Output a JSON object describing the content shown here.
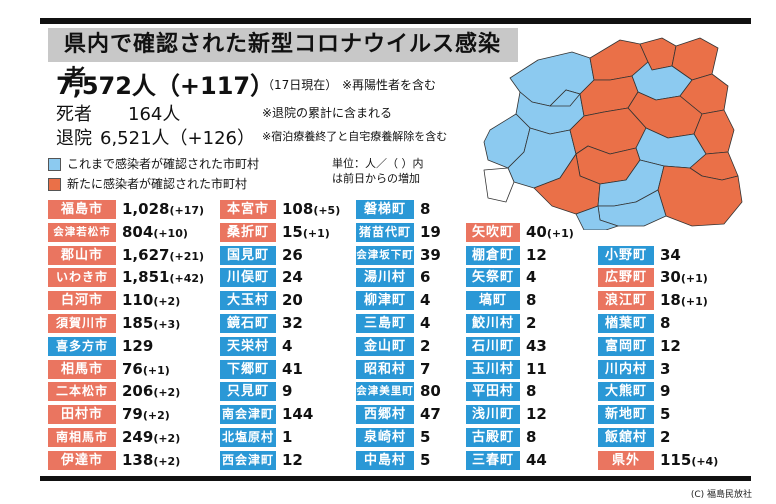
{
  "title": "県内で確認された新型コロナウイルス感染者",
  "stats": {
    "total": "7,572人（+117）",
    "total_date": "（17日現在）",
    "total_note": "※再陽性者を含む",
    "deaths_label": "死者",
    "deaths": "164人",
    "deaths_note": "※退院の累計に含まれる",
    "recovered_label": "退院",
    "recovered": "6,521人（+126）",
    "recovered_note": "※宿泊療養終了と自宅療養解除を含む"
  },
  "legend": {
    "existing": "これまで感染者が確認された市町村",
    "new": "新たに感染者が確認された市町村",
    "unit_line1": "単位：人／（ ）内",
    "unit_line2": "は前日からの増加"
  },
  "colors": {
    "blue": "#2a98d6",
    "red": "#ea7560",
    "map_blue": "#8ccaf0",
    "map_red": "#ea7048",
    "map_white": "#ffffff"
  },
  "columns": [
    [
      {
        "name": "福島市",
        "value": "1,028",
        "inc": "(+17)",
        "status": "new"
      },
      {
        "name": "会津若松市",
        "value": "804",
        "inc": "(+10)",
        "status": "new"
      },
      {
        "name": "郡山市",
        "value": "1,627",
        "inc": "(+21)",
        "status": "new"
      },
      {
        "name": "いわき市",
        "value": "1,851",
        "inc": "(+42)",
        "status": "new"
      },
      {
        "name": "白河市",
        "value": "110",
        "inc": "(+2)",
        "status": "new"
      },
      {
        "name": "須賀川市",
        "value": "185",
        "inc": "(+3)",
        "status": "new"
      },
      {
        "name": "喜多方市",
        "value": "129",
        "inc": "",
        "status": "existing"
      },
      {
        "name": "相馬市",
        "value": "76",
        "inc": "(+1)",
        "status": "new"
      },
      {
        "name": "二本松市",
        "value": "206",
        "inc": "(+2)",
        "status": "new"
      },
      {
        "name": "田村市",
        "value": "79",
        "inc": "(+2)",
        "status": "new"
      },
      {
        "name": "南相馬市",
        "value": "249",
        "inc": "(+2)",
        "status": "new"
      },
      {
        "name": "伊達市",
        "value": "138",
        "inc": "(+2)",
        "status": "new"
      }
    ],
    [
      {
        "name": "本宮市",
        "value": "108",
        "inc": "(+5)",
        "status": "new"
      },
      {
        "name": "桑折町",
        "value": "15",
        "inc": "(+1)",
        "status": "new"
      },
      {
        "name": "国見町",
        "value": "26",
        "inc": "",
        "status": "existing"
      },
      {
        "name": "川俣町",
        "value": "24",
        "inc": "",
        "status": "existing"
      },
      {
        "name": "大玉村",
        "value": "20",
        "inc": "",
        "status": "existing"
      },
      {
        "name": "鏡石町",
        "value": "32",
        "inc": "",
        "status": "existing"
      },
      {
        "name": "天栄村",
        "value": "4",
        "inc": "",
        "status": "existing"
      },
      {
        "name": "下郷町",
        "value": "41",
        "inc": "",
        "status": "existing"
      },
      {
        "name": "只見町",
        "value": "9",
        "inc": "",
        "status": "existing"
      },
      {
        "name": "南会津町",
        "value": "144",
        "inc": "",
        "status": "existing"
      },
      {
        "name": "北塩原村",
        "value": "1",
        "inc": "",
        "status": "existing"
      },
      {
        "name": "西会津町",
        "value": "12",
        "inc": "",
        "status": "existing"
      }
    ],
    [
      {
        "name": "磐梯町",
        "value": "8",
        "inc": "",
        "status": "existing"
      },
      {
        "name": "猪苗代町",
        "value": "19",
        "inc": "",
        "status": "existing"
      },
      {
        "name": "会津坂下町",
        "value": "39",
        "inc": "",
        "status": "existing"
      },
      {
        "name": "湯川村",
        "value": "6",
        "inc": "",
        "status": "existing"
      },
      {
        "name": "柳津町",
        "value": "4",
        "inc": "",
        "status": "existing"
      },
      {
        "name": "三島町",
        "value": "4",
        "inc": "",
        "status": "existing"
      },
      {
        "name": "金山町",
        "value": "2",
        "inc": "",
        "status": "existing"
      },
      {
        "name": "昭和村",
        "value": "7",
        "inc": "",
        "status": "existing"
      },
      {
        "name": "会津美里町",
        "value": "80",
        "inc": "",
        "status": "existing"
      },
      {
        "name": "西郷村",
        "value": "47",
        "inc": "",
        "status": "existing"
      },
      {
        "name": "泉崎村",
        "value": "5",
        "inc": "",
        "status": "existing"
      },
      {
        "name": "中島村",
        "value": "5",
        "inc": "",
        "status": "existing"
      }
    ],
    [
      {
        "name": "矢吹町",
        "value": "40",
        "inc": "(+1)",
        "status": "new"
      },
      {
        "name": "棚倉町",
        "value": "12",
        "inc": "",
        "status": "existing"
      },
      {
        "name": "矢祭町",
        "value": "4",
        "inc": "",
        "status": "existing"
      },
      {
        "name": "塙町",
        "value": "8",
        "inc": "",
        "status": "existing"
      },
      {
        "name": "鮫川村",
        "value": "2",
        "inc": "",
        "status": "existing"
      },
      {
        "name": "石川町",
        "value": "43",
        "inc": "",
        "status": "existing"
      },
      {
        "name": "玉川村",
        "value": "11",
        "inc": "",
        "status": "existing"
      },
      {
        "name": "平田村",
        "value": "8",
        "inc": "",
        "status": "existing"
      },
      {
        "name": "浅川町",
        "value": "12",
        "inc": "",
        "status": "existing"
      },
      {
        "name": "古殿町",
        "value": "8",
        "inc": "",
        "status": "existing"
      },
      {
        "name": "三春町",
        "value": "44",
        "inc": "",
        "status": "existing"
      }
    ],
    [
      {
        "name": "小野町",
        "value": "34",
        "inc": "",
        "status": "existing"
      },
      {
        "name": "広野町",
        "value": "30",
        "inc": "(+1)",
        "status": "new"
      },
      {
        "name": "浪江町",
        "value": "18",
        "inc": "(+1)",
        "status": "new"
      },
      {
        "name": "楢葉町",
        "value": "8",
        "inc": "",
        "status": "existing"
      },
      {
        "name": "富岡町",
        "value": "12",
        "inc": "",
        "status": "existing"
      },
      {
        "name": "川内村",
        "value": "3",
        "inc": "",
        "status": "existing"
      },
      {
        "name": "大熊町",
        "value": "9",
        "inc": "",
        "status": "existing"
      },
      {
        "name": "新地町",
        "value": "5",
        "inc": "",
        "status": "existing"
      },
      {
        "name": "飯舘村",
        "value": "2",
        "inc": "",
        "status": "existing"
      },
      {
        "name": "県外",
        "value": "115",
        "inc": "(+4)",
        "status": "new"
      }
    ]
  ],
  "copyright": "(C) 福島民放社"
}
